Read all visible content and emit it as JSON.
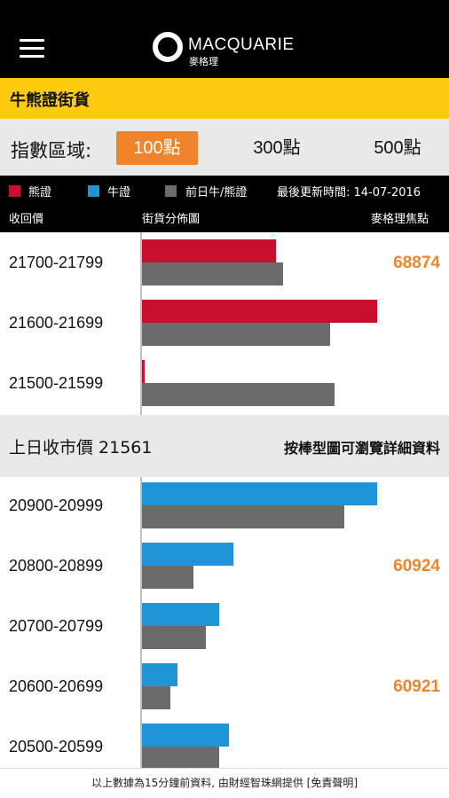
{
  "header": {
    "brand": "MACQUARIE",
    "brand_sub": "麥格理",
    "menu_icon": "hamburger-menu-icon"
  },
  "section": {
    "title": "牛熊證街貨"
  },
  "index_range": {
    "label": "指數區域:",
    "options": [
      "100點",
      "300點",
      "500點"
    ],
    "selected": "100點",
    "accent": "#f0842a"
  },
  "legend": {
    "bear": {
      "label": "熊證",
      "color": "#c8102e"
    },
    "bull": {
      "label": "牛證",
      "color": "#1f95d8"
    },
    "prev": {
      "label": "前日牛/熊證",
      "color": "#6b6b6b"
    },
    "updated": "最後更新時間: 14-07-2016",
    "col_recall": "收回價",
    "col_dist": "街貨分佈圖",
    "col_focus": "麥格理焦點"
  },
  "bear_rows": [
    {
      "range": "21700-21799",
      "today": 0.57,
      "prev": 0.6,
      "focus": "68874"
    },
    {
      "range": "21600-21699",
      "today": 1.0,
      "prev": 0.8,
      "focus": ""
    },
    {
      "range": "21500-21599",
      "today": 0.01,
      "prev": 0.82,
      "focus": ""
    }
  ],
  "close": {
    "label": "上日收市價 21561",
    "hint": "按棒型圖可瀏覽詳細資料"
  },
  "bull_rows": [
    {
      "range": "20900-20999",
      "today": 1.0,
      "prev": 0.86,
      "focus": ""
    },
    {
      "range": "20800-20899",
      "today": 0.39,
      "prev": 0.22,
      "focus": "60924"
    },
    {
      "range": "20700-20799",
      "today": 0.33,
      "prev": 0.27,
      "focus": ""
    },
    {
      "range": "20600-20699",
      "today": 0.15,
      "prev": 0.12,
      "focus": "60921"
    },
    {
      "range": "20500-20599",
      "today": 0.37,
      "prev": 0.33,
      "focus": ""
    }
  ],
  "footer": {
    "text": "以上數據為15分鐘前資料, 由財經智珠網提供 [免責聲明]"
  }
}
